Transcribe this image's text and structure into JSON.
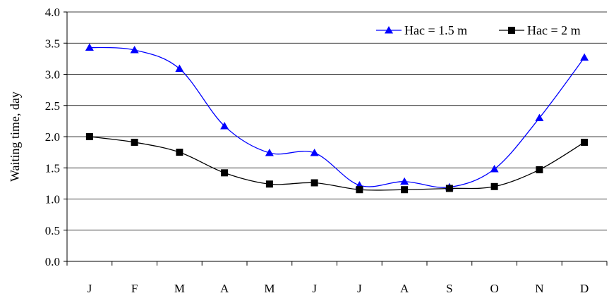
{
  "chart_data": {
    "type": "line",
    "categories": [
      "J",
      "F",
      "M",
      "A",
      "M",
      "J",
      "J",
      "A",
      "S",
      "O",
      "N",
      "D"
    ],
    "series": [
      {
        "name": "Hac = 1.5 m",
        "values": [
          3.43,
          3.39,
          3.09,
          2.17,
          1.74,
          1.74,
          1.22,
          1.28,
          1.19,
          1.48,
          2.3,
          3.27
        ],
        "color": "#0000ff",
        "marker": "triangle"
      },
      {
        "name": "Hac = 2 m",
        "values": [
          2.0,
          1.91,
          1.75,
          1.42,
          1.24,
          1.26,
          1.15,
          1.15,
          1.17,
          1.2,
          1.47,
          1.91
        ],
        "color": "#000000",
        "marker": "square"
      }
    ],
    "title": "",
    "xlabel": "",
    "ylabel": "Waiting time, day",
    "ylim": [
      0.0,
      4.0
    ],
    "yticks": [
      "0.0",
      "0.5",
      "1.0",
      "1.5",
      "2.0",
      "2.5",
      "3.0",
      "3.5",
      "4.0"
    ],
    "grid": true,
    "legend": "top-right",
    "smooth": true
  }
}
